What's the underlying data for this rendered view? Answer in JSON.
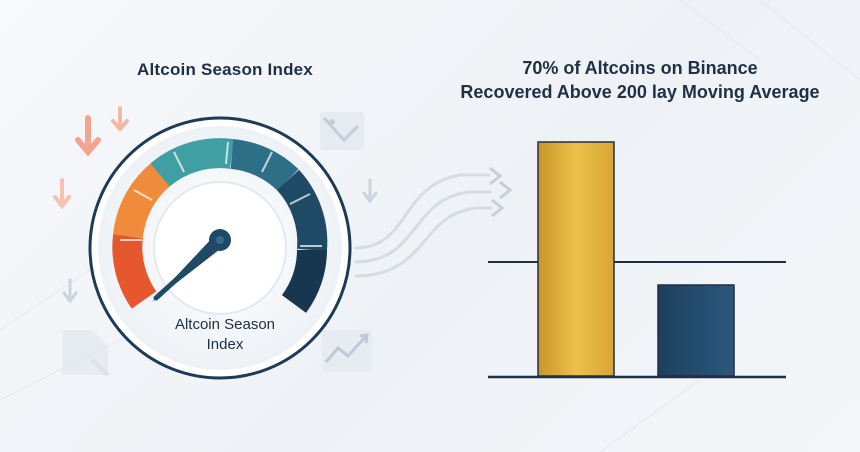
{
  "left_panel": {
    "title": "Altcoin Season Index",
    "gauge": {
      "label_line1": "Altcoin Season",
      "label_line2": "Index",
      "segment_colors": [
        "#e6572e",
        "#ef8b3a",
        "#3f9fa3",
        "#2c6f86",
        "#1f4a66",
        "#173650"
      ]
    }
  },
  "right_panel": {
    "title_line1": "70% of Altcoins on Binance",
    "title_line2": "Recovered Above 200 lay Moving Average",
    "bars": [
      {
        "name": "gold-bar",
        "color": "#e7b53a"
      },
      {
        "name": "navy-bar",
        "color": "#234a6b"
      }
    ]
  },
  "icons": [
    "down-arrow-icon",
    "chart-icon",
    "trend-up-icon",
    "double-chevron-icon"
  ]
}
